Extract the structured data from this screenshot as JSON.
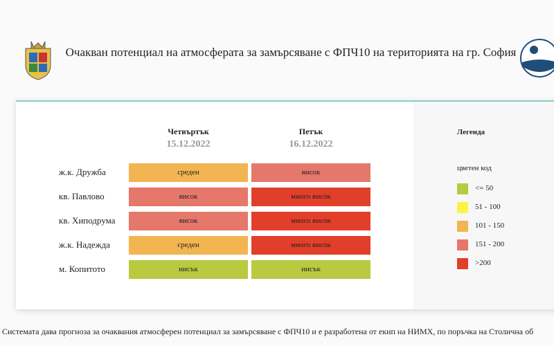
{
  "header": {
    "title": "Очакван потенциал на атмосферата за замърсяване с ФПЧ10 на територията на гр. София"
  },
  "table": {
    "days": [
      {
        "name": "Четвъртък",
        "date": "15.12.2022"
      },
      {
        "name": "Петък",
        "date": "16.12.2022"
      }
    ],
    "rows": [
      {
        "location": "ж.к. Дружба",
        "cells": [
          {
            "text": "среден",
            "color": "#f2b551"
          },
          {
            "text": "висок",
            "color": "#e5776b"
          }
        ]
      },
      {
        "location": "кв. Павлово",
        "cells": [
          {
            "text": "висок",
            "color": "#e5776b"
          },
          {
            "text": "много висок",
            "color": "#e23f2b"
          }
        ]
      },
      {
        "location": "кв. Хиподрума",
        "cells": [
          {
            "text": "висок",
            "color": "#e5776b"
          },
          {
            "text": "много висок",
            "color": "#e23f2b"
          }
        ]
      },
      {
        "location": "ж.к. Надежда",
        "cells": [
          {
            "text": "среден",
            "color": "#f2b551"
          },
          {
            "text": "много висок",
            "color": "#e23f2b"
          }
        ]
      },
      {
        "location": "м. Копитото",
        "cells": [
          {
            "text": "нисък",
            "color": "#b9c940"
          },
          {
            "text": "нисък",
            "color": "#b9c940"
          }
        ]
      }
    ]
  },
  "legend": {
    "title": "Легенда",
    "subtitle": "цветен код",
    "items": [
      {
        "label": "<= 50",
        "color": "#b9c940"
      },
      {
        "label": "51 - 100",
        "color": "#fdf346"
      },
      {
        "label": "101 - 150",
        "color": "#f2b551"
      },
      {
        "label": "151 - 200",
        "color": "#e5776b"
      },
      {
        "label": ">200",
        "color": "#e23f2b"
      }
    ]
  },
  "footer": {
    "text": "Системата дава прогноза за очаквания атмосферен потенциал за замърсяване с ФПЧ10 и е разработена от екип на НИМХ, по поръчка на Столична об"
  }
}
